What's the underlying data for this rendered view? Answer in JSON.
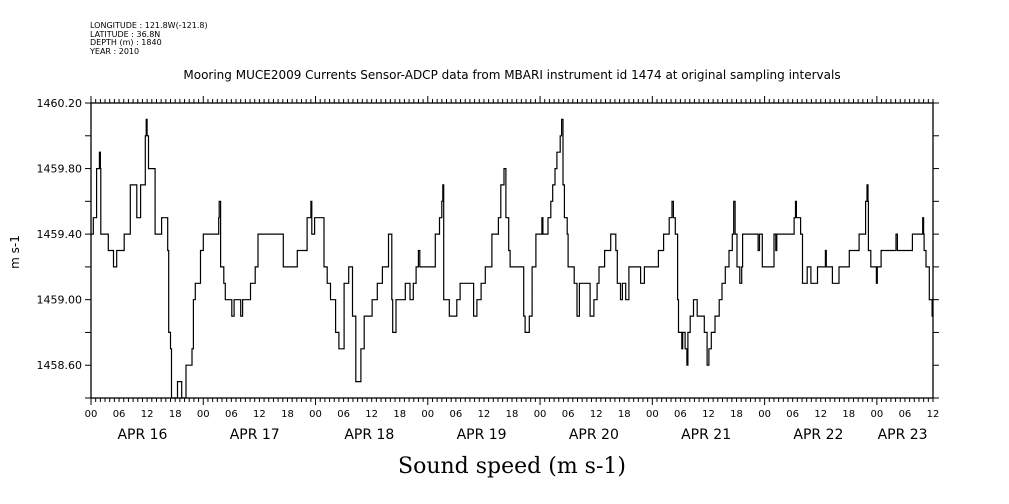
{
  "header": {
    "longitude": "LONGITUDE : 121.8W(-121.8)",
    "latitude": "LATITUDE : 36.8N",
    "depth": "DEPTH (m) : 1840",
    "year": "YEAR : 2010"
  },
  "chart_data": {
    "type": "line",
    "title": "Mooring MUCE2009 Currents Sensor-ADCP data from MBARI instrument id 1474 at original sampling intervals",
    "xlabel": "Sound speed (m s-1)",
    "ylabel": "m s-1",
    "ylim": [
      1458.4,
      1460.2
    ],
    "yticks": [
      1458.6,
      1459.0,
      1459.4,
      1459.8,
      1460.2
    ],
    "ytick_labels": [
      "1458.60",
      "1459.00",
      "1459.40",
      "1459.80",
      "1460.20"
    ],
    "x_units": "hours since APR 16 00:00",
    "xlim": [
      0,
      180
    ],
    "hour_tick_labels": [
      "00",
      "06",
      "12",
      "18",
      "00",
      "06",
      "12",
      "18",
      "00",
      "06",
      "12",
      "18",
      "00",
      "06",
      "12",
      "18",
      "00",
      "06",
      "12",
      "18",
      "00",
      "06",
      "12",
      "18",
      "00",
      "06",
      "12",
      "18",
      "00",
      "06",
      "12"
    ],
    "date_labels": [
      {
        "label": "APR 16",
        "hour": 11
      },
      {
        "label": "APR 17",
        "hour": 35
      },
      {
        "label": "APR 18",
        "hour": 59.5
      },
      {
        "label": "APR 19",
        "hour": 83.5
      },
      {
        "label": "APR 20",
        "hour": 107.5
      },
      {
        "label": "APR 21",
        "hour": 131.5
      },
      {
        "label": "APR 22",
        "hour": 155.5
      },
      {
        "label": "APR 23",
        "hour": 173.5
      }
    ],
    "grid": false,
    "series": [
      {
        "name": "Sound speed",
        "step": true,
        "points": [
          [
            0,
            1459.4
          ],
          [
            0.5,
            1459.5
          ],
          [
            1.2,
            1459.8
          ],
          [
            1.8,
            1459.9
          ],
          [
            2.0,
            1459.8
          ],
          [
            2.1,
            1459.4
          ],
          [
            3.7,
            1459.3
          ],
          [
            4.8,
            1459.2
          ],
          [
            5.5,
            1459.3
          ],
          [
            7.1,
            1459.4
          ],
          [
            8.4,
            1459.7
          ],
          [
            9.8,
            1459.5
          ],
          [
            10.6,
            1459.7
          ],
          [
            11.6,
            1460.0
          ],
          [
            11.8,
            1460.1
          ],
          [
            12.0,
            1460.0
          ],
          [
            12.3,
            1459.8
          ],
          [
            13.7,
            1459.4
          ],
          [
            15.1,
            1459.5
          ],
          [
            16.4,
            1459.3
          ],
          [
            16.6,
            1458.8
          ],
          [
            17.0,
            1458.7
          ],
          [
            17.2,
            1458.4
          ],
          [
            18.5,
            1458.5
          ],
          [
            19.4,
            1458.4
          ],
          [
            20.3,
            1458.6
          ],
          [
            21.6,
            1458.7
          ],
          [
            21.9,
            1459.0
          ],
          [
            22.3,
            1459.1
          ],
          [
            23.4,
            1459.3
          ],
          [
            24.0,
            1459.4
          ],
          [
            27.3,
            1459.5
          ],
          [
            27.4,
            1459.6
          ],
          [
            27.7,
            1459.2
          ],
          [
            28.4,
            1459.1
          ],
          [
            28.7,
            1459.0
          ],
          [
            30.1,
            1458.9
          ],
          [
            30.6,
            1459.0
          ],
          [
            32.0,
            1458.9
          ],
          [
            32.4,
            1459.0
          ],
          [
            34.1,
            1459.1
          ],
          [
            35.1,
            1459.2
          ],
          [
            35.7,
            1459.4
          ],
          [
            41.1,
            1459.2
          ],
          [
            44.1,
            1459.3
          ],
          [
            46.2,
            1459.5
          ],
          [
            47.0,
            1459.6
          ],
          [
            47.2,
            1459.4
          ],
          [
            47.8,
            1459.5
          ],
          [
            49.8,
            1459.2
          ],
          [
            50.5,
            1459.1
          ],
          [
            51.2,
            1459.0
          ],
          [
            52.3,
            1458.8
          ],
          [
            53.0,
            1458.7
          ],
          [
            54.1,
            1459.1
          ],
          [
            55.1,
            1459.2
          ],
          [
            55.9,
            1458.9
          ],
          [
            56.6,
            1458.5
          ],
          [
            57.7,
            1458.7
          ],
          [
            58.4,
            1458.9
          ],
          [
            60.1,
            1459.0
          ],
          [
            61.2,
            1459.1
          ],
          [
            62.3,
            1459.2
          ],
          [
            63.6,
            1459.4
          ],
          [
            64.3,
            1459.0
          ],
          [
            64.5,
            1458.8
          ],
          [
            65.2,
            1459.0
          ],
          [
            67.2,
            1459.1
          ],
          [
            68.2,
            1459.0
          ],
          [
            68.9,
            1459.1
          ],
          [
            69.5,
            1459.2
          ],
          [
            70.0,
            1459.3
          ],
          [
            70.3,
            1459.2
          ],
          [
            73.6,
            1459.4
          ],
          [
            74.5,
            1459.5
          ],
          [
            75.0,
            1459.6
          ],
          [
            75.2,
            1459.7
          ],
          [
            75.4,
            1459.0
          ],
          [
            76.6,
            1458.9
          ],
          [
            78.2,
            1459.0
          ],
          [
            78.9,
            1459.1
          ],
          [
            81.8,
            1458.9
          ],
          [
            82.5,
            1459.0
          ],
          [
            83.4,
            1459.1
          ],
          [
            84.3,
            1459.2
          ],
          [
            85.7,
            1459.4
          ],
          [
            87.1,
            1459.5
          ],
          [
            87.6,
            1459.7
          ],
          [
            88.3,
            1459.8
          ],
          [
            88.7,
            1459.5
          ],
          [
            89.3,
            1459.3
          ],
          [
            89.6,
            1459.2
          ],
          [
            92.5,
            1458.9
          ],
          [
            92.8,
            1458.8
          ],
          [
            93.7,
            1458.9
          ],
          [
            94.3,
            1459.2
          ],
          [
            95.1,
            1459.4
          ],
          [
            96.4,
            1459.5
          ],
          [
            96.6,
            1459.4
          ],
          [
            97.7,
            1459.5
          ],
          [
            98.3,
            1459.6
          ],
          [
            98.7,
            1459.7
          ],
          [
            99.2,
            1459.8
          ],
          [
            99.6,
            1459.9
          ],
          [
            100.3,
            1460.0
          ],
          [
            100.6,
            1460.1
          ],
          [
            100.9,
            1459.7
          ],
          [
            101.2,
            1459.5
          ],
          [
            101.8,
            1459.4
          ],
          [
            102.0,
            1459.2
          ],
          [
            103.3,
            1459.1
          ],
          [
            103.9,
            1458.9
          ],
          [
            104.4,
            1459.1
          ],
          [
            106.7,
            1458.9
          ],
          [
            107.5,
            1459.0
          ],
          [
            108.2,
            1459.1
          ],
          [
            108.6,
            1459.2
          ],
          [
            109.8,
            1459.3
          ],
          [
            111.1,
            1459.4
          ],
          [
            112.2,
            1459.3
          ],
          [
            112.5,
            1459.1
          ],
          [
            113.2,
            1459.0
          ],
          [
            113.6,
            1459.1
          ],
          [
            114.3,
            1459.0
          ],
          [
            115.0,
            1459.2
          ],
          [
            117.5,
            1459.1
          ],
          [
            118.3,
            1459.2
          ],
          [
            121.3,
            1459.3
          ],
          [
            122.4,
            1459.4
          ],
          [
            123.6,
            1459.5
          ],
          [
            124.2,
            1459.6
          ],
          [
            124.5,
            1459.5
          ],
          [
            124.9,
            1459.4
          ],
          [
            125.4,
            1459.0
          ],
          [
            125.6,
            1458.8
          ],
          [
            126.3,
            1458.7
          ],
          [
            126.5,
            1458.8
          ],
          [
            127.0,
            1458.7
          ],
          [
            127.4,
            1458.6
          ],
          [
            127.6,
            1458.8
          ],
          [
            128.1,
            1458.9
          ],
          [
            128.8,
            1459.0
          ],
          [
            129.6,
            1458.9
          ],
          [
            131.1,
            1458.8
          ],
          [
            131.7,
            1458.6
          ],
          [
            132.1,
            1458.7
          ],
          [
            132.6,
            1458.8
          ],
          [
            133.4,
            1458.9
          ],
          [
            134.3,
            1459.0
          ],
          [
            134.9,
            1459.1
          ],
          [
            135.6,
            1459.2
          ],
          [
            136.4,
            1459.3
          ],
          [
            137.1,
            1459.4
          ],
          [
            137.4,
            1459.6
          ],
          [
            137.7,
            1459.4
          ],
          [
            138.1,
            1459.2
          ],
          [
            138.7,
            1459.1
          ],
          [
            139.1,
            1459.2
          ],
          [
            139.3,
            1459.4
          ],
          [
            142.6,
            1459.3
          ],
          [
            142.9,
            1459.4
          ],
          [
            143.5,
            1459.2
          ],
          [
            146.0,
            1459.4
          ],
          [
            146.4,
            1459.3
          ],
          [
            146.6,
            1459.4
          ],
          [
            150.3,
            1459.5
          ],
          [
            150.6,
            1459.6
          ],
          [
            150.8,
            1459.5
          ],
          [
            151.7,
            1459.4
          ],
          [
            152.1,
            1459.1
          ],
          [
            153.1,
            1459.2
          ],
          [
            153.9,
            1459.1
          ],
          [
            155.3,
            1459.2
          ],
          [
            157.0,
            1459.3
          ],
          [
            157.2,
            1459.2
          ],
          [
            158.5,
            1459.1
          ],
          [
            159.9,
            1459.2
          ],
          [
            162.1,
            1459.3
          ],
          [
            164.2,
            1459.4
          ],
          [
            165.6,
            1459.6
          ],
          [
            165.9,
            1459.7
          ],
          [
            166.1,
            1459.6
          ],
          [
            166.2,
            1459.3
          ],
          [
            166.7,
            1459.2
          ],
          [
            167.9,
            1459.1
          ],
          [
            168.1,
            1459.2
          ],
          [
            168.9,
            1459.3
          ],
          [
            172.1,
            1459.4
          ],
          [
            172.4,
            1459.3
          ],
          [
            173.9,
            1459.3
          ],
          [
            175.6,
            1459.4
          ],
          [
            177.8,
            1459.5
          ],
          [
            178.0,
            1459.4
          ],
          [
            178.1,
            1459.3
          ],
          [
            178.5,
            1459.2
          ],
          [
            179.2,
            1459.0
          ],
          [
            179.8,
            1458.9
          ],
          [
            180,
            1458.9
          ]
        ]
      }
    ]
  }
}
